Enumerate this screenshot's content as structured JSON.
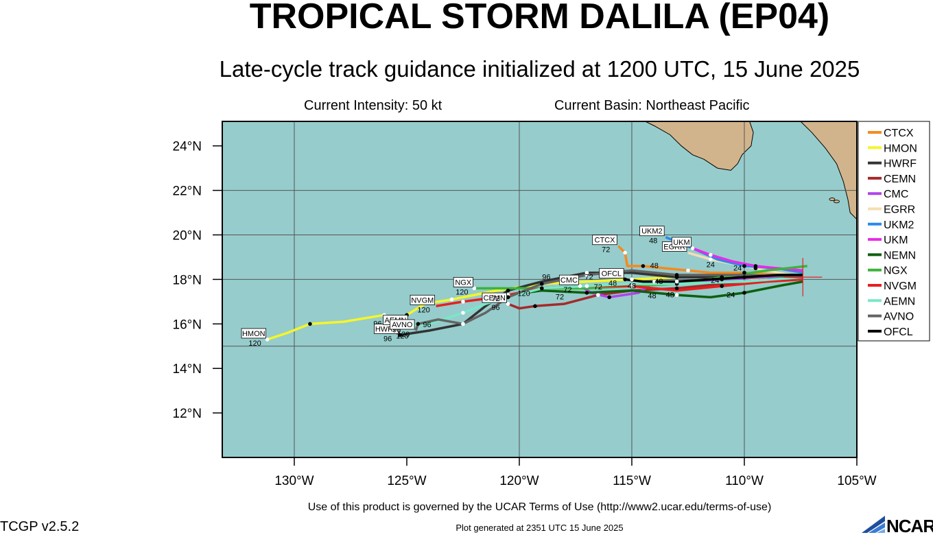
{
  "header": {
    "title": "TROPICAL STORM DALILA (EP04)",
    "subtitle": "Late-cycle track guidance initialized at 1200 UTC, 15 June 2025",
    "intensity": "Current Intensity: 50 kt",
    "basin": "Current Basin: Northeast Pacific"
  },
  "footer": {
    "terms": "Use of this product is governed by the UCAR Terms of Use (http://www2.ucar.edu/terms-of-use)",
    "generated": "Plot generated at 2351 UTC   15 June 2025",
    "version": "TCGP v2.5.2",
    "logo_text": "NCAR"
  },
  "chart_data": {
    "type": "map",
    "lon_range": [
      -133.2,
      -105.0
    ],
    "lat_range": [
      10.0,
      25.1
    ],
    "lon_ticks": [
      -130,
      -125,
      -120,
      -115,
      -110,
      -105
    ],
    "lon_tick_labels": [
      "130°W",
      "125°W",
      "120°W",
      "115°W",
      "110°W",
      "105°W"
    ],
    "lat_ticks": [
      12,
      14,
      16,
      18,
      20,
      22,
      24
    ],
    "lat_tick_labels": [
      "12°N",
      "14°N",
      "16°N",
      "18°N",
      "20°N",
      "22°N",
      "24°N"
    ],
    "gridlines": {
      "lon": [
        -130,
        -120,
        -115,
        -110
      ],
      "lat": [
        15,
        18,
        20,
        22
      ]
    },
    "ocean_color": "#96cccc",
    "land_color": "#d2b48c",
    "legend_position": "right",
    "initial_position": {
      "lon": -107.4,
      "lat": 18.1
    },
    "models": [
      {
        "name": "CTCX",
        "color": "#f58a1f",
        "track": [
          [
            -107.4,
            18.1
          ],
          [
            -108.5,
            18.2
          ],
          [
            -110,
            18.3
          ],
          [
            -111.5,
            18.3
          ],
          [
            -112.5,
            18.4
          ],
          [
            -113.5,
            18.5
          ],
          [
            -114.5,
            18.6
          ],
          [
            -115.2,
            18.6
          ],
          [
            -115.3,
            19.2
          ],
          [
            -115.6,
            19.5
          ]
        ],
        "end_label": "CTCX",
        "end_hour": "72"
      },
      {
        "name": "HMON",
        "color": "#f5f52a",
        "track": [
          [
            -107.4,
            18.1
          ],
          [
            -109,
            18.0
          ],
          [
            -111,
            18.1
          ],
          [
            -113,
            18.1
          ],
          [
            -115,
            18.0
          ],
          [
            -117,
            17.9
          ],
          [
            -119,
            17.8
          ],
          [
            -121,
            17.5
          ],
          [
            -123,
            17.1
          ],
          [
            -124.2,
            16.9
          ],
          [
            -125,
            16.4
          ],
          [
            -125.7,
            16.1
          ],
          [
            -126,
            16.4
          ],
          [
            -127.8,
            16.1
          ],
          [
            -129.3,
            16.0
          ],
          [
            -130.3,
            15.6
          ],
          [
            -131.2,
            15.3
          ]
        ],
        "end_label": "HMON",
        "end_hour": "120"
      },
      {
        "name": "HWRF",
        "color": "#333333",
        "track": [
          [
            -107.4,
            18.2
          ],
          [
            -110,
            18.1
          ],
          [
            -113,
            18.1
          ],
          [
            -115,
            18.3
          ],
          [
            -117,
            18.3
          ],
          [
            -119,
            17.9
          ],
          [
            -120.5,
            17.5
          ],
          [
            -121.5,
            16.8
          ],
          [
            -122.5,
            16.0
          ],
          [
            -124,
            15.7
          ],
          [
            -125.3,
            15.5
          ]
        ],
        "end_label": "HWRF",
        "end_hour": "96"
      },
      {
        "name": "CEMN",
        "color": "#a52a2a",
        "track": [
          [
            -107.4,
            18.1
          ],
          [
            -110,
            17.9
          ],
          [
            -113,
            17.6
          ],
          [
            -115,
            17.5
          ],
          [
            -116.5,
            17.3
          ],
          [
            -118,
            16.9
          ],
          [
            -119.3,
            16.8
          ],
          [
            -120,
            16.7
          ],
          [
            -120.5,
            16.9
          ]
        ],
        "end_label": "CEMN",
        "end_hour": "96"
      },
      {
        "name": "CMC",
        "color": "#b044e8",
        "track": [
          [
            -107.4,
            18.1
          ],
          [
            -109,
            18.1
          ],
          [
            -111,
            18.0
          ],
          [
            -112.5,
            17.9
          ],
          [
            -114,
            17.9
          ],
          [
            -114.7,
            17.4
          ],
          [
            -116,
            17.2
          ],
          [
            -116.8,
            17.4
          ],
          [
            -117.3,
            17.7
          ]
        ],
        "end_label": "CMC",
        "end_hour": "72"
      },
      {
        "name": "EGRR",
        "color": "#f5deb3",
        "track": [
          [
            -107.4,
            18.1
          ],
          [
            -108.5,
            18.3
          ],
          [
            -109.5,
            18.5
          ],
          [
            -110.5,
            18.7
          ],
          [
            -111.5,
            18.9
          ],
          [
            -112.5,
            19.2
          ]
        ],
        "end_label": "EGRR",
        "end_hour": ""
      },
      {
        "name": "UKM2",
        "color": "#2a8ae8",
        "track": [
          [
            -107.4,
            18.3
          ],
          [
            -108.5,
            18.5
          ],
          [
            -110,
            18.6
          ],
          [
            -111.2,
            18.9
          ],
          [
            -112.3,
            19.4
          ],
          [
            -113.5,
            19.9
          ]
        ],
        "end_label": "UKM2",
        "end_hour": "48"
      },
      {
        "name": "UKM",
        "color": "#e82ae8",
        "track": [
          [
            -107.4,
            18.4
          ],
          [
            -108.5,
            18.5
          ],
          [
            -109.5,
            18.6
          ],
          [
            -110.5,
            18.8
          ],
          [
            -111.5,
            19.1
          ],
          [
            -112.3,
            19.4
          ]
        ],
        "end_label": "UKM",
        "end_hour": ""
      },
      {
        "name": "NEMN",
        "color": "#0f5f0f",
        "track": [
          [
            -107.4,
            17.9
          ],
          [
            -108.5,
            17.7
          ],
          [
            -110,
            17.4
          ],
          [
            -111.5,
            17.2
          ],
          [
            -113,
            17.3
          ],
          [
            -115,
            17.5
          ],
          [
            -117,
            17.4
          ],
          [
            -119,
            17.5
          ],
          [
            -120.5,
            17.3
          ]
        ],
        "end_label": "",
        "end_hour": "72"
      },
      {
        "name": "NGX",
        "color": "#3cb43c",
        "track": [
          [
            -107.2,
            18.6
          ],
          [
            -109,
            18.4
          ],
          [
            -111,
            18.1
          ],
          [
            -113,
            17.8
          ],
          [
            -115,
            17.7
          ],
          [
            -117,
            17.6
          ],
          [
            -119,
            17.6
          ],
          [
            -120.5,
            17.6
          ],
          [
            -122,
            17.6
          ]
        ],
        "end_label": "NGX",
        "end_hour": "120"
      },
      {
        "name": "NVGM",
        "color": "#e81e1e",
        "track": [
          [
            -107.4,
            18.0
          ],
          [
            -109,
            17.9
          ],
          [
            -111,
            17.7
          ],
          [
            -113,
            17.5
          ],
          [
            -115,
            17.7
          ],
          [
            -117,
            17.7
          ],
          [
            -119,
            17.6
          ],
          [
            -121,
            17.2
          ],
          [
            -122.5,
            17.0
          ],
          [
            -123.7,
            16.8
          ]
        ],
        "end_label": "NVGM",
        "end_hour": "120"
      },
      {
        "name": "AEMN",
        "color": "#78e8c8",
        "track": [
          [
            -107.4,
            18.1
          ],
          [
            -110,
            17.9
          ],
          [
            -113,
            17.8
          ],
          [
            -115,
            17.8
          ],
          [
            -117,
            17.7
          ],
          [
            -119,
            17.6
          ],
          [
            -120.5,
            17.2
          ],
          [
            -121.5,
            16.9
          ],
          [
            -122.5,
            16.5
          ],
          [
            -124,
            16.0
          ],
          [
            -124.9,
            15.9
          ]
        ],
        "end_label": "AEMN",
        "end_hour": "96"
      },
      {
        "name": "AVNO",
        "color": "#646464",
        "track": [
          [
            -107.4,
            18.1
          ],
          [
            -110,
            18.2
          ],
          [
            -113,
            18.2
          ],
          [
            -115,
            18.4
          ],
          [
            -117,
            18.2
          ],
          [
            -119,
            17.8
          ],
          [
            -120.5,
            17.2
          ],
          [
            -121.5,
            16.5
          ],
          [
            -122.5,
            16.0
          ],
          [
            -123.6,
            16.2
          ],
          [
            -124.5,
            16.0
          ],
          [
            -124.6,
            15.7
          ]
        ],
        "end_label": "AVNO",
        "end_hour": "120"
      },
      {
        "name": "OFCL",
        "color": "#000000",
        "track": [
          [
            -107.4,
            18.2
          ],
          [
            -108.5,
            18.2
          ],
          [
            -110,
            18.1
          ],
          [
            -111.5,
            18.0
          ],
          [
            -113,
            17.9
          ],
          [
            -114.5,
            17.9
          ],
          [
            -115.3,
            18.0
          ]
        ],
        "end_label": "OFCL",
        "end_hour": "48"
      }
    ],
    "hour_labels": [
      {
        "text": "24",
        "lon": -111.5,
        "lat": 18.55
      },
      {
        "text": "24",
        "lon": -110.3,
        "lat": 18.4
      },
      {
        "text": "24",
        "lon": -111.3,
        "lat": 17.85
      },
      {
        "text": "24",
        "lon": -110.6,
        "lat": 17.2
      },
      {
        "text": "48",
        "lon": -113.3,
        "lat": 17.2
      },
      {
        "text": "48",
        "lon": -114.0,
        "lat": 18.5
      },
      {
        "text": "48",
        "lon": -113.8,
        "lat": 17.8
      },
      {
        "text": "48",
        "lon": -115.0,
        "lat": 17.6
      },
      {
        "text": "48",
        "lon": -114.1,
        "lat": 17.15
      },
      {
        "text": "72",
        "lon": -116.9,
        "lat": 18.0
      },
      {
        "text": "72",
        "lon": -116.5,
        "lat": 17.55
      },
      {
        "text": "72",
        "lon": -118.2,
        "lat": 17.1
      },
      {
        "text": "96",
        "lon": -118.8,
        "lat": 18.0
      },
      {
        "text": "96",
        "lon": -125.8,
        "lat": 15.9
      },
      {
        "text": "96",
        "lon": -126.3,
        "lat": 15.9
      },
      {
        "text": "96",
        "lon": -124.1,
        "lat": 15.85
      },
      {
        "text": "120",
        "lon": -119.8,
        "lat": 17.25
      },
      {
        "text": "120",
        "lon": -125.2,
        "lat": 15.35
      }
    ]
  }
}
